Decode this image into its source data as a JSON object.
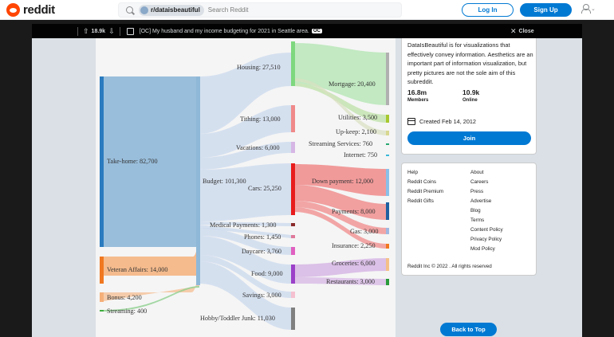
{
  "header": {
    "logo_text": "reddit",
    "search_chip": "r/dataisbeautiful",
    "search_placeholder": "Search Reddit",
    "login_label": "Log In",
    "signup_label": "Sign Up"
  },
  "post_bar": {
    "votes": "18.9k",
    "title": "[OC] My husband and my income budgeting for 2021 in Seattle area.",
    "badge": "OC",
    "close_label": "Close"
  },
  "sankey": {
    "labels": {
      "take_home": "Take-home: 82,700",
      "veteran": "Veteran Affairs: 14,000",
      "bonus": "Bonus: 4,200",
      "streaming": "Streaming: 400",
      "budget": "Budget: 101,300",
      "housing": "Housing: 27,510",
      "tithing": "Tithing: 13,000",
      "vacations": "Vacations: 6,000",
      "cars": "Cars: 25,250",
      "medical": "Medical Payments: 1,300",
      "phones": "Phones: 1,450",
      "daycare": "Daycare: 3,760",
      "food": "Food: 9,000",
      "savings": "Savings: 3,000",
      "hobby": "Hobby/Toddler Junk: 11,030",
      "mortgage": "Mortgage: 20,400",
      "utilities": "Utilities: 3,500",
      "upkeep": "Up-keep: 2,100",
      "streaming_services": "Streaming Services: 760",
      "internet": "Internet: 750",
      "down_payment": "Down payment: 12,000",
      "payments": "Payments: 8,000",
      "gas": "Gas: 3,000",
      "insurance": "Insurance: 2,250",
      "groceries": "Groceries: 6,000",
      "restaurants": "Restaurants: 3,000"
    }
  },
  "sidebar": {
    "about": "DataIsBeautiful is for visualizations that effectively convey information. Aesthetics are an important part of information visualization, but pretty pictures are not the sole aim of this subreddit.",
    "members_value": "16.8m",
    "members_label": "Members",
    "online_value": "10.9k",
    "online_label": "Online",
    "created": "Created Feb 14, 2012",
    "join_label": "Join",
    "footer_links_left": [
      "Help",
      "Reddit Coins",
      "Reddit Premium",
      "Reddit Gifts"
    ],
    "footer_links_right": [
      "About",
      "Careers",
      "Press",
      "Advertise",
      "Blog",
      "Terms",
      "Content Policy",
      "Privacy Policy",
      "Mod Policy"
    ],
    "copyright": "Reddit Inc © 2022 . All rights reserved",
    "back_to_top": "Back to Top"
  },
  "colors": {
    "brand": "#ff4500",
    "accent": "#0079d3",
    "take_home": "#8fb8d8",
    "veteran": "#f5b07a",
    "housing": "#7ed87e",
    "cars": "#e84040",
    "food": "#b07ad0"
  }
}
